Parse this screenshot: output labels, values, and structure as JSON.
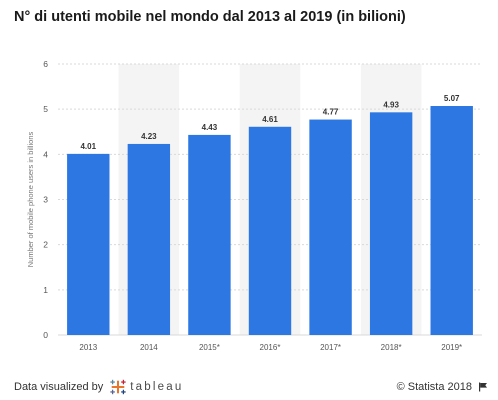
{
  "chart_data": {
    "type": "bar",
    "title": "N° di utenti mobile nel mondo dal 2013 al 2019 (in bilioni)",
    "ylabel": "Number of mobile phone users in billions",
    "xlabel": "",
    "categories": [
      "2013",
      "2014",
      "2015*",
      "2016*",
      "2017*",
      "2018*",
      "2019*"
    ],
    "values": [
      4.01,
      4.23,
      4.43,
      4.61,
      4.77,
      4.93,
      5.07
    ],
    "value_labels": [
      "4.01",
      "4.23",
      "4.43",
      "4.61",
      "4.77",
      "4.93",
      "5.07"
    ],
    "yticks": [
      "0",
      "1",
      "2",
      "3",
      "4",
      "5",
      "6"
    ],
    "ylim": [
      0,
      6
    ],
    "grid": true,
    "alternating_band_columns": true,
    "bar_color": "#2d77e3",
    "band_color": "#f4f4f4",
    "grid_color": "#d9d9d9"
  },
  "footer": {
    "left_text": "Data visualized by",
    "logo_text": "tableau",
    "logo_icon": "tableau-plus-icon",
    "right_text": "© Statista 2018",
    "right_icon": "flag-icon"
  }
}
